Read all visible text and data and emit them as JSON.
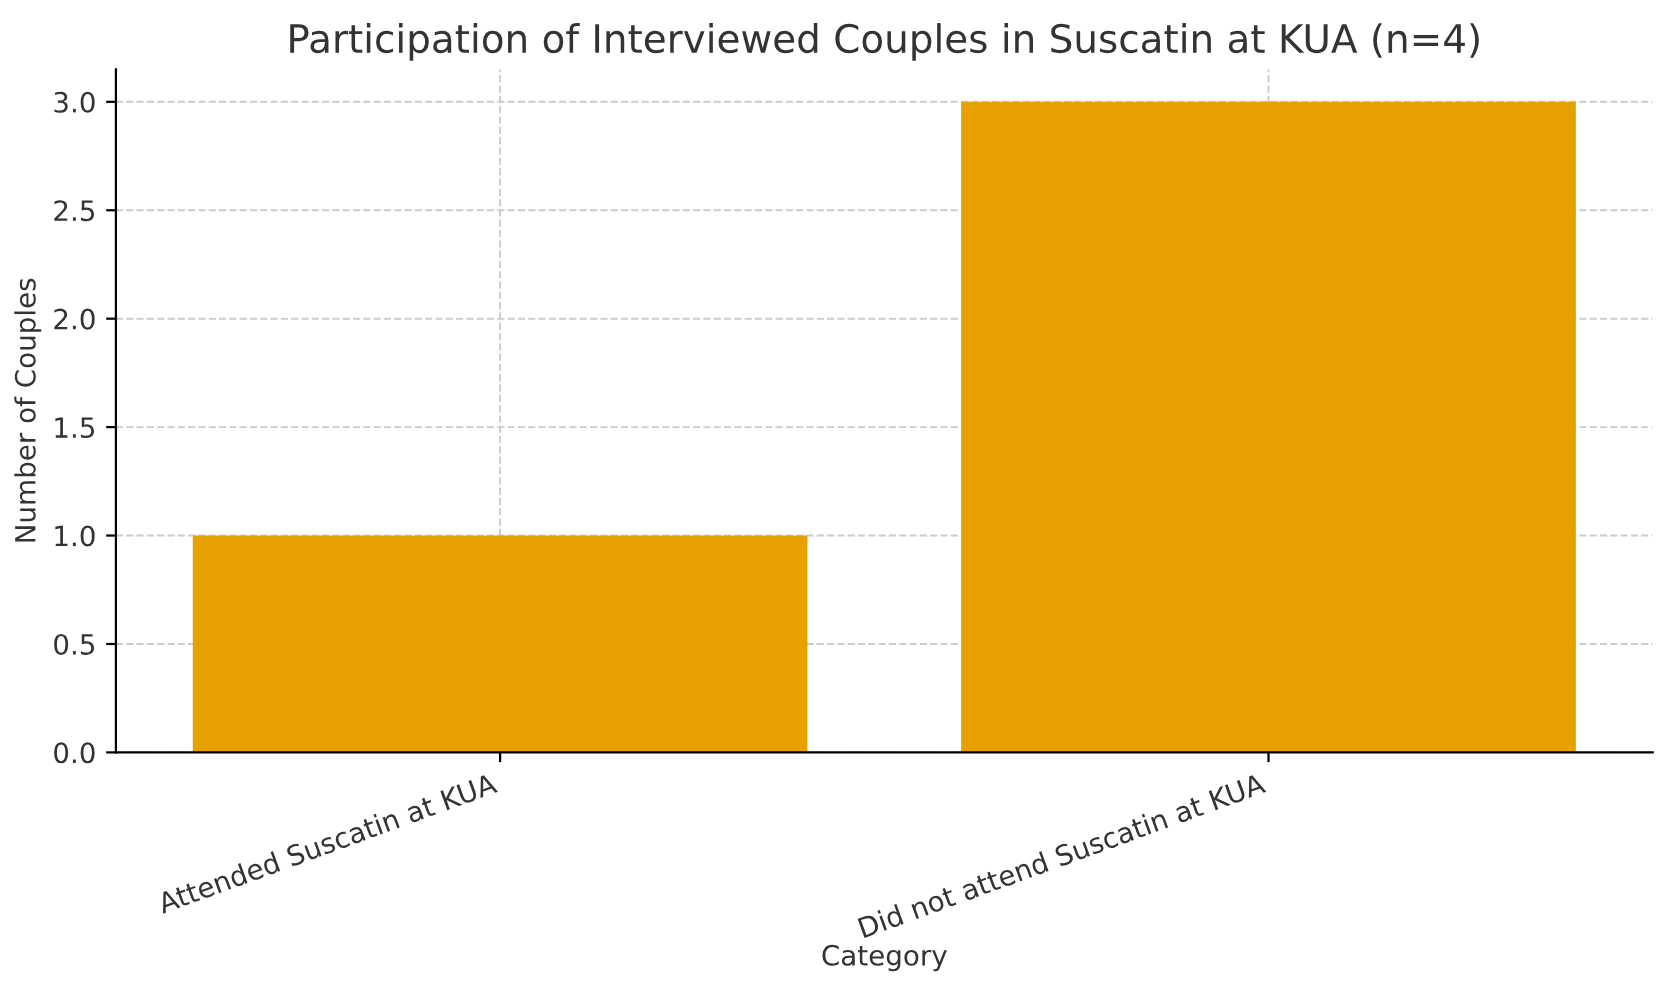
{
  "chart_data": {
    "type": "bar",
    "title": "Participation of Interviewed Couples in Suscatin at KUA (n=4)",
    "xlabel": "Category",
    "ylabel": "Number of Couples",
    "categories": [
      "Attended Suscatin at KUA",
      "Did not attend Suscatin at KUA"
    ],
    "values": [
      1,
      3
    ],
    "color": "#e6a000",
    "ylim": [
      0,
      3.15
    ],
    "yticks": [
      {
        "value": 0,
        "label": "0.0"
      },
      {
        "value": 0.5,
        "label": "0.5"
      },
      {
        "value": 1,
        "label": "1.0"
      },
      {
        "value": 1.5,
        "label": "1.5"
      },
      {
        "value": 2,
        "label": "2.0"
      },
      {
        "value": 2.5,
        "label": "2.5"
      },
      {
        "value": 3,
        "label": "3.0"
      }
    ],
    "grid": true
  }
}
